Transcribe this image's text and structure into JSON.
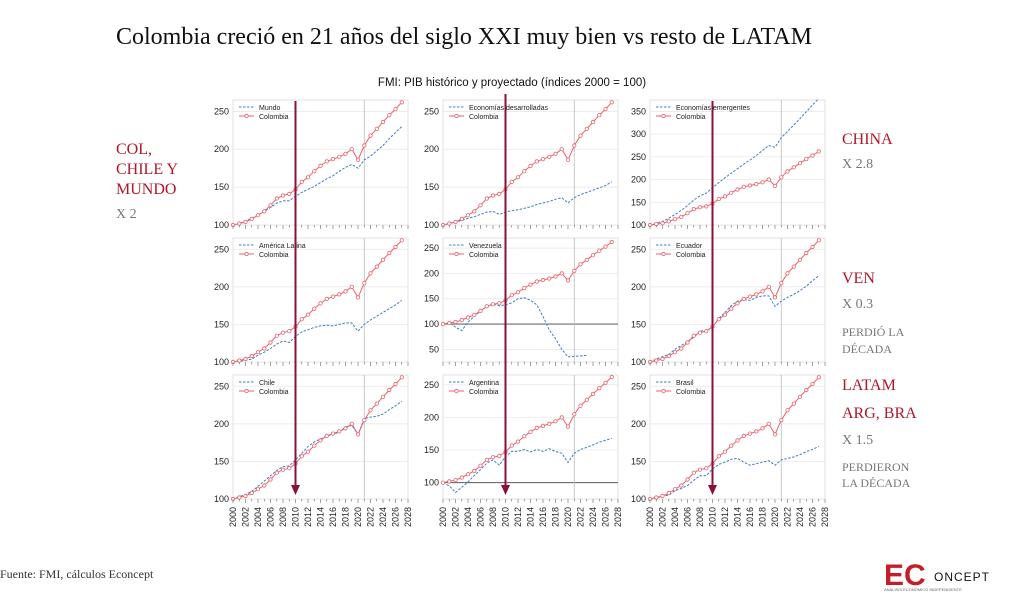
{
  "title": "Colombia creció en 21 años del siglo XXI muy bien vs resto de LATAM",
  "source": "Fuente: FMI, cálculos Econcept",
  "logo": {
    "big": "EC",
    "small": "ONCEPT",
    "tag": "ANÁLISIS ECONÓMICO INDEPENDIENTE"
  },
  "colors": {
    "colombia": "#e8626a",
    "comparison": "#3b7ec8",
    "arrow": "#8b0f3a",
    "note_red": "#b0172a"
  },
  "annotations": {
    "col_chile_mundo": {
      "line1": "COL,",
      "line2": "CHILE Y",
      "line3": "MUNDO",
      "multiple": "X 2"
    },
    "china": {
      "label": "CHINA",
      "multiple": "X 2.8"
    },
    "ven": {
      "label": "VEN",
      "multiple": "X 0.3",
      "note1": "PERDIÓ LA",
      "note2": "DÉCADA"
    },
    "latam": {
      "label1": "LATAM",
      "label2": "ARG, BRA",
      "multiple": "X 1.5",
      "note1": "PERDIERON",
      "note2": "LA DÉCADA"
    }
  },
  "chart_data": {
    "type": "line",
    "title": "FMI: PIB histórico y proyectado (índices 2000 = 100)",
    "x_tick_labels": [
      "2000",
      "2002",
      "2004",
      "2006",
      "2008",
      "2010",
      "2012",
      "2014",
      "2016",
      "2018",
      "2020",
      "2022",
      "2024",
      "2026",
      "2028"
    ],
    "arrow_year": 2010,
    "projection_start_year": 2021,
    "colombia": {
      "name": "Colombia",
      "x": [
        2000,
        2001,
        2002,
        2003,
        2004,
        2005,
        2006,
        2007,
        2008,
        2009,
        2010,
        2011,
        2012,
        2013,
        2014,
        2015,
        2016,
        2017,
        2018,
        2019,
        2020,
        2021,
        2022,
        2023,
        2024,
        2025,
        2026,
        2027
      ],
      "values": [
        100,
        102,
        104,
        108,
        113,
        118,
        126,
        135,
        139,
        141,
        147,
        157,
        163,
        171,
        178,
        184,
        187,
        190,
        194,
        200,
        186,
        205,
        218,
        227,
        236,
        245,
        253,
        262
      ]
    },
    "panels": [
      {
        "name": "Mundo",
        "ylim": [
          100,
          265
        ],
        "yticks": [
          100,
          150,
          200,
          250
        ],
        "values": [
          100,
          102,
          105,
          109,
          113,
          118,
          123,
          129,
          132,
          132,
          138,
          143,
          147,
          151,
          156,
          161,
          165,
          171,
          176,
          180,
          175,
          186,
          191,
          198,
          205,
          214,
          222,
          230
        ]
      },
      {
        "name": "Economías desarrolladas",
        "ylim": [
          100,
          265
        ],
        "yticks": [
          100,
          150,
          200,
          250
        ],
        "values": [
          100,
          102,
          104,
          106,
          109,
          111,
          114,
          117,
          118,
          114,
          117,
          119,
          120,
          122,
          124,
          127,
          129,
          131,
          134,
          136,
          129,
          136,
          140,
          143,
          146,
          149,
          152,
          157
        ]
      },
      {
        "name": "Economías emergentes",
        "ylim": [
          100,
          375
        ],
        "yticks": [
          100,
          150,
          200,
          250,
          300,
          350
        ],
        "values": [
          100,
          104,
          108,
          115,
          123,
          132,
          143,
          155,
          164,
          170,
          182,
          193,
          204,
          214,
          224,
          234,
          243,
          253,
          264,
          275,
          271,
          292,
          306,
          320,
          334,
          349,
          364,
          378
        ]
      },
      {
        "name": "América Latina",
        "ylim": [
          100,
          265
        ],
        "yticks": [
          100,
          150,
          200,
          250
        ],
        "values": [
          100,
          101,
          102,
          104,
          109,
          113,
          118,
          124,
          128,
          126,
          134,
          140,
          143,
          146,
          148,
          149,
          148,
          150,
          152,
          152,
          141,
          150,
          156,
          161,
          166,
          171,
          176,
          182
        ]
      },
      {
        "name": "Venezuela",
        "ylim": [
          25,
          270
        ],
        "yticks": [
          50,
          100,
          150,
          200,
          250
        ],
        "hline": 100,
        "values": [
          100,
          103,
          94,
          87,
          104,
          115,
          126,
          135,
          140,
          136,
          138,
          142,
          150,
          152,
          147,
          138,
          115,
          88,
          71,
          50,
          35,
          36,
          37,
          38,
          null,
          null,
          null,
          null
        ]
      },
      {
        "name": "Ecuador",
        "ylim": [
          100,
          265
        ],
        "yticks": [
          100,
          150,
          200,
          250
        ],
        "values": [
          100,
          104,
          107,
          110,
          117,
          122,
          127,
          133,
          141,
          142,
          146,
          158,
          166,
          175,
          181,
          183,
          182,
          186,
          188,
          188,
          174,
          181,
          186,
          190,
          195,
          201,
          208,
          215
        ]
      },
      {
        "name": "Chile",
        "ylim": [
          100,
          265
        ],
        "yticks": [
          100,
          150,
          200,
          250
        ],
        "values": [
          100,
          103,
          106,
          110,
          117,
          124,
          131,
          138,
          143,
          144,
          152,
          161,
          170,
          176,
          180,
          184,
          186,
          189,
          196,
          198,
          186,
          207,
          209,
          210,
          213,
          219,
          224,
          230
        ]
      },
      {
        "name": "Argentina",
        "ylim": [
          75,
          265
        ],
        "yticks": [
          100,
          150,
          200,
          250
        ],
        "hline": 100,
        "values": [
          100,
          95,
          85,
          93,
          101,
          111,
          120,
          130,
          135,
          127,
          140,
          148,
          148,
          151,
          147,
          151,
          148,
          152,
          148,
          145,
          131,
          145,
          151,
          154,
          158,
          162,
          165,
          168
        ]
      },
      {
        "name": "Brasil",
        "ylim": [
          100,
          265
        ],
        "yticks": [
          100,
          150,
          200,
          250
        ],
        "values": [
          100,
          101,
          104,
          105,
          111,
          114,
          118,
          125,
          131,
          131,
          140,
          146,
          149,
          153,
          154,
          149,
          145,
          147,
          149,
          151,
          145,
          152,
          154,
          156,
          159,
          163,
          166,
          170
        ]
      }
    ]
  }
}
